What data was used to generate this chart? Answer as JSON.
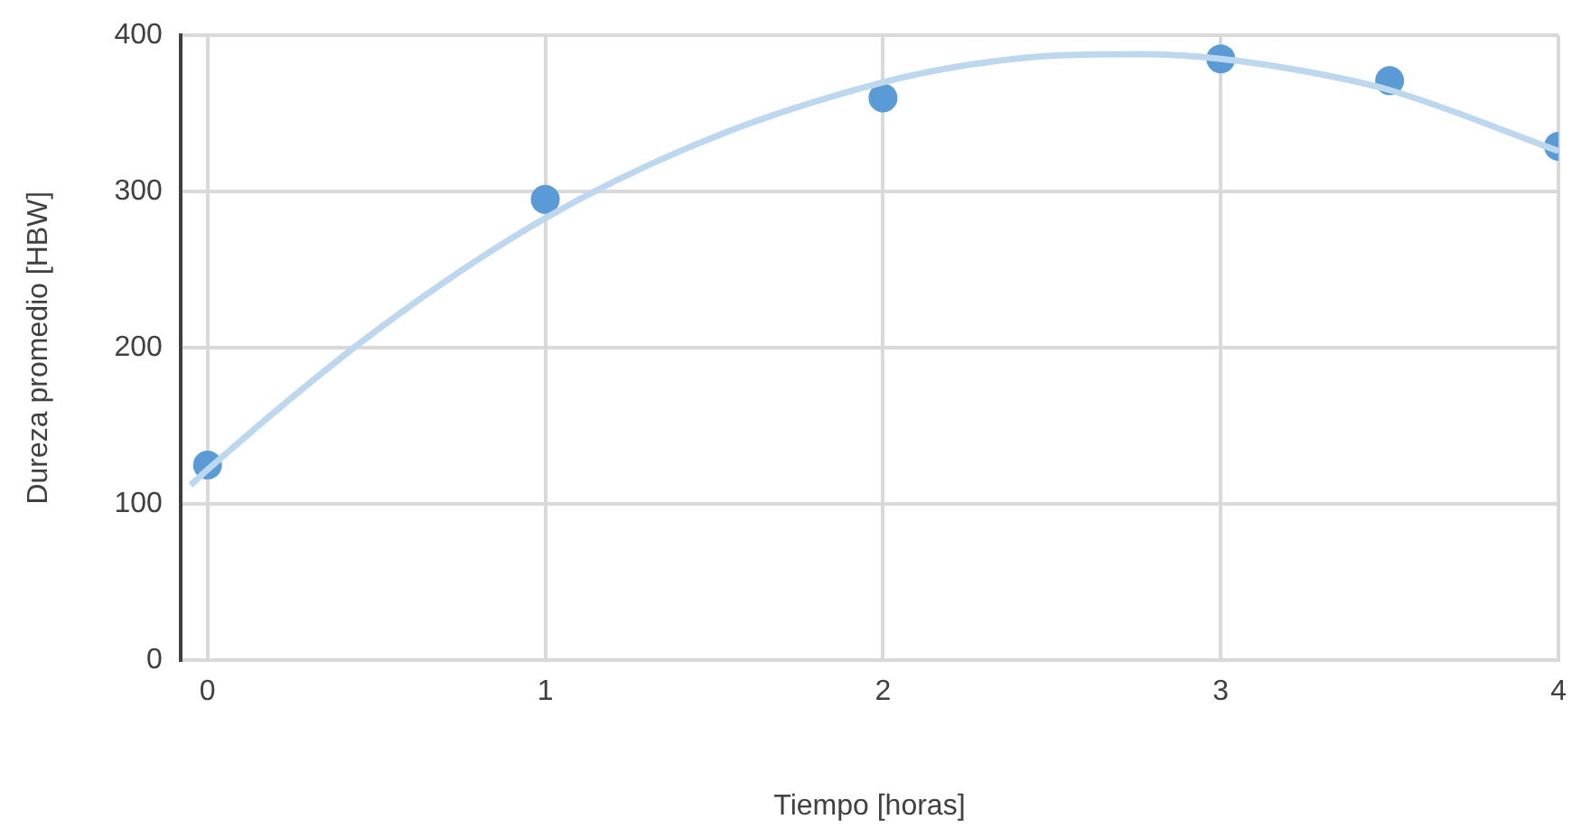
{
  "chart_data": {
    "type": "scatter",
    "xlabel": "Tiempo [horas]",
    "ylabel": "Dureza promedio [HBW]",
    "xlim": [
      -0.08,
      4
    ],
    "xticks": [
      0,
      1,
      2,
      3,
      4
    ],
    "ylim": [
      0,
      400
    ],
    "yticks": [
      0,
      100,
      200,
      300,
      400
    ],
    "grid": true,
    "legend": false,
    "series": [
      {
        "type": "line",
        "color": "#bdd7ee",
        "marker": "none",
        "line_style": "solid",
        "x": [
          -0.05,
          0,
          0.5,
          1,
          1.5,
          2,
          2.25,
          2.5,
          2.75,
          3,
          3.25,
          3.5,
          4
        ],
        "values": [
          112,
          122,
          211,
          283,
          335,
          370,
          381,
          387,
          388,
          385,
          377,
          365,
          326
        ]
      },
      {
        "color": "#5b9bd5",
        "marker": "circle",
        "x": [
          0,
          1,
          2,
          3,
          3.5,
          4
        ],
        "values": [
          125,
          295,
          360,
          385,
          371,
          329
        ]
      }
    ]
  }
}
